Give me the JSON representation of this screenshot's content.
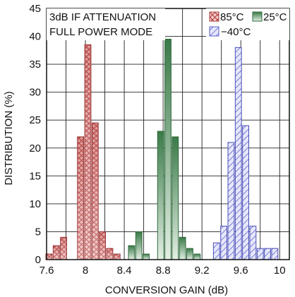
{
  "chart_data": {
    "type": "bar",
    "annotation": [
      "3dB IF ATTENUATION",
      "FULL POWER MODE"
    ],
    "xlabel": "CONVERSION GAIN (dB)",
    "ylabel": "DISTRIBUTION (%)",
    "xlim": [
      7.6,
      10.1
    ],
    "ylim": [
      0,
      45
    ],
    "xticks": [
      "7.6",
      "8",
      "8.4",
      "8.8",
      "9.2",
      "9.6",
      "10"
    ],
    "yticks": [
      "0",
      "5",
      "10",
      "15",
      "20",
      "25",
      "30",
      "35",
      "40",
      "45"
    ],
    "grid": true,
    "legend_position": "top-right",
    "series": [
      {
        "name": "85°C",
        "color": "#c0504d",
        "pattern": "crosshatch",
        "x": [
          7.625,
          7.7,
          7.775,
          7.95,
          8.025,
          8.1,
          8.175,
          8.25,
          8.325
        ],
        "values": [
          1,
          2.5,
          4,
          22,
          38.5,
          24.5,
          5,
          2,
          1
        ]
      },
      {
        "name": "25°C",
        "color": "#3f7f4c",
        "pattern": "solid",
        "x": [
          8.475,
          8.55,
          8.625,
          8.775,
          8.85,
          8.925,
          9.0,
          9.075,
          9.15
        ],
        "values": [
          2.5,
          5,
          1,
          23,
          39.5,
          22,
          4,
          2,
          1
        ]
      },
      {
        "name": "−40°C",
        "color": "#5a5fcf",
        "pattern": "diagonal",
        "x": [
          9.35,
          9.425,
          9.5,
          9.575,
          9.65,
          9.725,
          9.8,
          9.875,
          9.95
        ],
        "values": [
          3,
          6,
          21,
          38,
          24,
          6,
          2,
          2,
          2
        ]
      }
    ]
  }
}
